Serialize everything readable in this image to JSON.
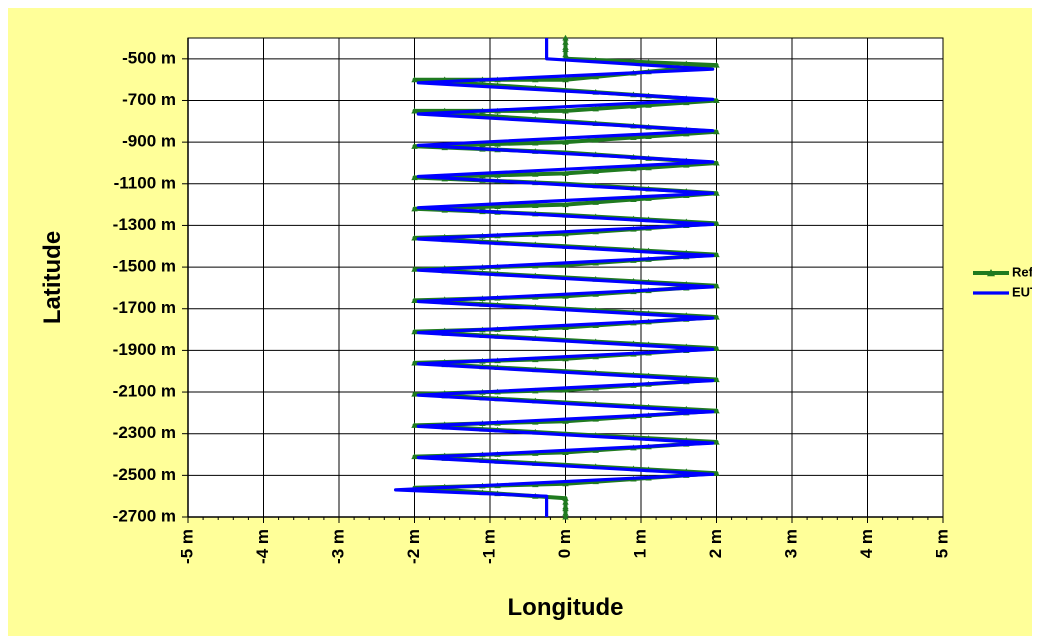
{
  "chart_data": {
    "type": "line",
    "title": "",
    "xlabel": "Longitude",
    "ylabel": "Latitude",
    "xlim": [
      -5,
      5
    ],
    "ylim": [
      -2700,
      -400
    ],
    "x_ticks": [
      -5,
      -4,
      -3,
      -2,
      -1,
      0,
      1,
      2,
      3,
      4,
      5
    ],
    "x_tick_labels": [
      "-5 m",
      "-4 m",
      "-3 m",
      "-2 m",
      "-1 m",
      "0 m",
      "1 m",
      "2 m",
      "3 m",
      "4 m",
      "5 m"
    ],
    "y_ticks": [
      -500,
      -700,
      -900,
      -1100,
      -1300,
      -1500,
      -1700,
      -1900,
      -2100,
      -2300,
      -2500,
      -2700
    ],
    "y_tick_labels": [
      "-500 m",
      "-700 m",
      "-900 m",
      "-1100 m",
      "-1300 m",
      "-1500 m",
      "-1700 m",
      "-1900 m",
      "-2100 m",
      "-2300 m",
      "-2500 m",
      "-2700 m"
    ],
    "grid": true,
    "legend_position": "right",
    "series": [
      {
        "name": "Ref.",
        "color": "#1f7a1f",
        "marker": "triangle",
        "points": [
          [
            0,
            -400
          ],
          [
            0,
            -500
          ],
          [
            2,
            -530
          ],
          [
            0,
            -600
          ],
          [
            -2,
            -600
          ],
          [
            0,
            -650
          ],
          [
            2,
            -700
          ],
          [
            0,
            -750
          ],
          [
            -2,
            -750
          ],
          [
            0,
            -800
          ],
          [
            2,
            -850
          ],
          [
            0,
            -900
          ],
          [
            -2,
            -920
          ],
          [
            0,
            -950
          ],
          [
            2,
            -1000
          ],
          [
            0,
            -1050
          ],
          [
            -2,
            -1070
          ],
          [
            0,
            -1100
          ],
          [
            2,
            -1145
          ],
          [
            0,
            -1200
          ],
          [
            -2,
            -1220
          ],
          [
            0,
            -1250
          ],
          [
            2,
            -1290
          ],
          [
            0,
            -1340
          ],
          [
            -2,
            -1360
          ],
          [
            0,
            -1400
          ],
          [
            2,
            -1440
          ],
          [
            0,
            -1490
          ],
          [
            -2,
            -1510
          ],
          [
            0,
            -1550
          ],
          [
            2,
            -1590
          ],
          [
            0,
            -1640
          ],
          [
            -2,
            -1660
          ],
          [
            0,
            -1700
          ],
          [
            2,
            -1740
          ],
          [
            0,
            -1790
          ],
          [
            -2,
            -1810
          ],
          [
            0,
            -1850
          ],
          [
            2,
            -1890
          ],
          [
            0,
            -1940
          ],
          [
            -2,
            -1960
          ],
          [
            0,
            -2000
          ],
          [
            2,
            -2040
          ],
          [
            0,
            -2090
          ],
          [
            -2,
            -2110
          ],
          [
            0,
            -2150
          ],
          [
            2,
            -2190
          ],
          [
            0,
            -2240
          ],
          [
            -2,
            -2260
          ],
          [
            0,
            -2300
          ],
          [
            2,
            -2340
          ],
          [
            0,
            -2390
          ],
          [
            -2,
            -2410
          ],
          [
            0,
            -2450
          ],
          [
            2,
            -2490
          ],
          [
            0,
            -2540
          ],
          [
            -2,
            -2560
          ],
          [
            0,
            -2610
          ],
          [
            0,
            -2700
          ]
        ]
      },
      {
        "name": "EUT",
        "color": "#0000ff",
        "marker": "none",
        "points": [
          [
            -0.25,
            -400
          ],
          [
            -0.25,
            -500
          ],
          [
            1.95,
            -550
          ],
          [
            -1.95,
            -615
          ],
          [
            1.95,
            -695
          ],
          [
            -1.95,
            -765
          ],
          [
            1.95,
            -845
          ],
          [
            -1.95,
            -915
          ],
          [
            1.95,
            -995
          ],
          [
            -1.95,
            -1065
          ],
          [
            1.95,
            -1145
          ],
          [
            -1.95,
            -1215
          ],
          [
            1.95,
            -1295
          ],
          [
            -1.95,
            -1365
          ],
          [
            1.95,
            -1445
          ],
          [
            -1.95,
            -1515
          ],
          [
            1.95,
            -1595
          ],
          [
            -1.95,
            -1665
          ],
          [
            1.95,
            -1745
          ],
          [
            -1.95,
            -1815
          ],
          [
            1.95,
            -1895
          ],
          [
            -1.95,
            -1965
          ],
          [
            1.95,
            -2045
          ],
          [
            -1.95,
            -2115
          ],
          [
            1.95,
            -2195
          ],
          [
            -1.95,
            -2265
          ],
          [
            1.95,
            -2345
          ],
          [
            -1.95,
            -2415
          ],
          [
            1.95,
            -2495
          ],
          [
            -2.25,
            -2570
          ],
          [
            -0.25,
            -2600
          ],
          [
            -0.25,
            -2700
          ]
        ]
      }
    ]
  }
}
